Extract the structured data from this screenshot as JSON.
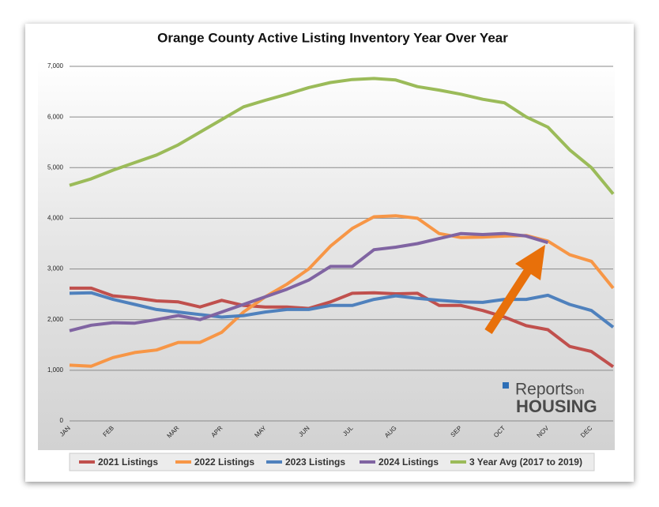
{
  "chart_data": {
    "type": "line",
    "title": "Orange County Active Listing Inventory Year Over Year",
    "categories": [
      "JAN",
      null,
      "FEB",
      null,
      null,
      "MAR",
      null,
      "APR",
      null,
      "MAY",
      null,
      "JUN",
      null,
      "JUL",
      null,
      "AUG",
      null,
      null,
      "SEP",
      null,
      "OCT",
      null,
      "NOV",
      null,
      "DEC",
      null
    ],
    "series": [
      {
        "name": "2021 Listings",
        "color": "#c0504d",
        "values": [
          2620,
          2620,
          2470,
          2430,
          2370,
          2350,
          2250,
          2380,
          2280,
          2250,
          2250,
          2220,
          2350,
          2520,
          2530,
          2510,
          2520,
          2280,
          2280,
          2180,
          2050,
          1880,
          1800,
          1470,
          1370,
          1070
        ]
      },
      {
        "name": "2022 Listings",
        "color": "#f79646",
        "values": [
          1100,
          1080,
          1250,
          1350,
          1400,
          1550,
          1550,
          1750,
          2150,
          2450,
          2700,
          3000,
          3450,
          3800,
          4030,
          4050,
          4000,
          3700,
          3620,
          3630,
          3650,
          3660,
          3550,
          3280,
          3150,
          2620
        ]
      },
      {
        "name": "2023 Listings",
        "color": "#4f81bd",
        "values": [
          2520,
          2530,
          2400,
          2300,
          2200,
          2150,
          2100,
          2050,
          2080,
          2150,
          2200,
          2200,
          2280,
          2280,
          2400,
          2470,
          2420,
          2380,
          2350,
          2340,
          2400,
          2400,
          2480,
          2300,
          2180,
          1850
        ]
      },
      {
        "name": "2024 Listings",
        "color": "#8064a2",
        "values": [
          1780,
          1890,
          1940,
          1930,
          2000,
          2080,
          2000,
          2150,
          2300,
          2450,
          2600,
          2780,
          3050,
          3050,
          3380,
          3430,
          3500,
          3600,
          3700,
          3680,
          3700,
          3650,
          3520,
          null,
          null,
          null
        ]
      },
      {
        "name": "3 Year Avg (2017 to 2019)",
        "color": "#9bbb59",
        "values": [
          4650,
          4780,
          4950,
          5100,
          5250,
          5450,
          5700,
          5950,
          6200,
          6330,
          6450,
          6580,
          6680,
          6740,
          6760,
          6730,
          6600,
          6530,
          6450,
          6350,
          6280,
          6000,
          5800,
          5350,
          5000,
          4480
        ]
      }
    ],
    "ylim": [
      0,
      7000
    ],
    "yticks": [
      0,
      {
        "value": 1000,
        "label": "1,000"
      },
      {
        "value": 2000,
        "label": "2,000"
      },
      {
        "value": 3000,
        "label": "3,000"
      },
      {
        "value": 4000,
        "label": "4,000"
      },
      {
        "value": 5000,
        "label": "5,000"
      },
      {
        "value": 6000,
        "label": "6,000"
      },
      {
        "value": 7000,
        "label": "7,000"
      }
    ],
    "grid": true,
    "legend": "bottom",
    "logo": {
      "line1": "Reports",
      "line1b": "on",
      "line2": "HOUSING"
    }
  }
}
